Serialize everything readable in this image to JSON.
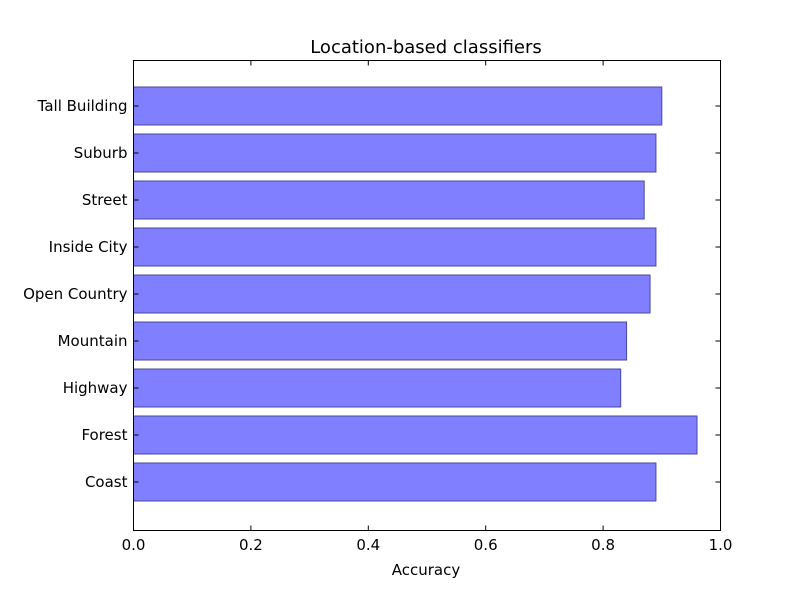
{
  "chart_data": {
    "type": "bar",
    "orientation": "horizontal",
    "title": "Location-based classifiers",
    "xlabel": "Accuracy",
    "ylabel": "",
    "xlim": [
      0.0,
      1.0
    ],
    "x_ticks": [
      "0.0",
      "0.2",
      "0.4",
      "0.6",
      "0.8",
      "1.0"
    ],
    "categories": [
      "Coast",
      "Forest",
      "Highway",
      "Mountain",
      "Open Country",
      "Inside City",
      "Street",
      "Suburb",
      "Tall Building"
    ],
    "values": [
      0.89,
      0.96,
      0.83,
      0.84,
      0.88,
      0.89,
      0.87,
      0.89,
      0.9
    ],
    "grid": false,
    "bar_color": "#7f7fff",
    "bar_edge_color": "#4a4a9a"
  }
}
